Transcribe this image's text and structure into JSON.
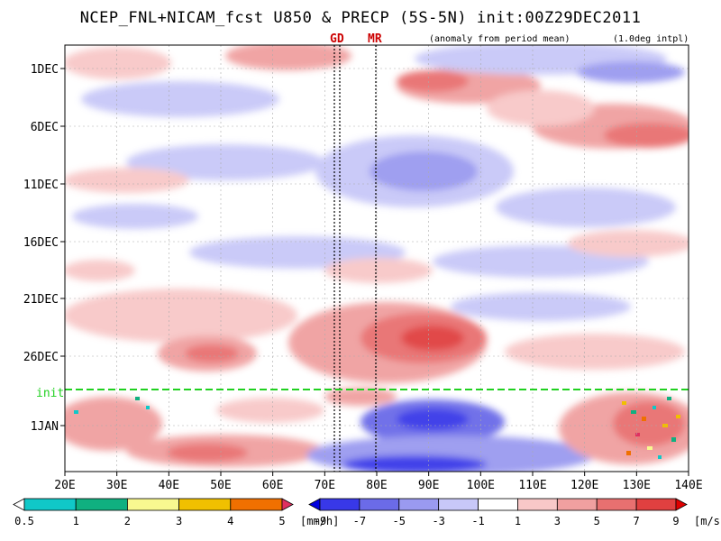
{
  "chart_data": {
    "type": "heatmap",
    "title": "NCEP_FNL+NICAM_fcst U850 & PRECP (5S-5N) init:00Z29DEC2011",
    "note_left": "(anomaly from period mean)",
    "note_right": "(1.0deg intpl)",
    "x_ticks": [
      "20E",
      "30E",
      "40E",
      "50E",
      "60E",
      "70E",
      "80E",
      "90E",
      "100E",
      "110E",
      "120E",
      "130E",
      "140E"
    ],
    "y_ticks": [
      "1DEC",
      "6DEC",
      "11DEC",
      "16DEC",
      "21DEC",
      "26DEC",
      "1JAN"
    ],
    "xlim_deg": [
      20,
      140
    ],
    "markers": [
      {
        "label": "GD",
        "lon": 72.5
      },
      {
        "label": "MR",
        "lon": 80
      }
    ],
    "init_line": {
      "label": "init",
      "date": "29DEC"
    },
    "precip_colorbar": {
      "ticks": [
        "0.5",
        "1",
        "2",
        "3",
        "4",
        "5"
      ],
      "unit": "[mm/h]",
      "colors": [
        "#ffffff",
        "#10c8c8",
        "#10b080",
        "#f8f890",
        "#f0c000",
        "#f07000",
        "#e03060"
      ]
    },
    "u850_colorbar": {
      "ticks": [
        "-9",
        "-7",
        "-5",
        "-3",
        "-1",
        "1",
        "3",
        "5",
        "7",
        "9"
      ],
      "unit": "[m/s]",
      "colors": [
        "#0000e0",
        "#3838e8",
        "#6b6be8",
        "#9a9af0",
        "#c8c8f8",
        "#ffffff",
        "#f8c8c8",
        "#f0a0a0",
        "#e87070",
        "#e04040",
        "#e00000"
      ]
    }
  }
}
